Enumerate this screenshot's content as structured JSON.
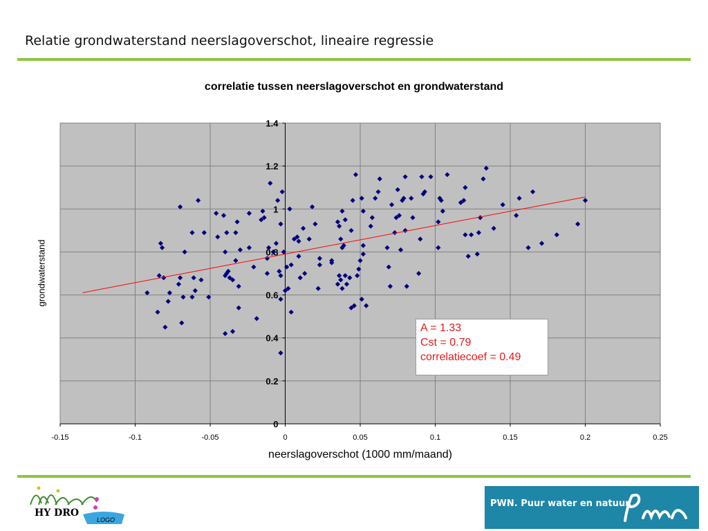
{
  "slide": {
    "title": "Relatie grondwaterstand neerslagoverschot,   lineaire regressie"
  },
  "colors": {
    "accent_rule": "#8cc63e",
    "plot_background": "#c0c0c0",
    "marker": "#000080",
    "regression_line": "#ff0000",
    "stats_text": "#e31b1b",
    "brand_blue": "#1e86a7"
  },
  "stats": {
    "line1": "A = 1.33",
    "line2": "Cst = 0.79",
    "line3": "correlatiecoef = 0.49"
  },
  "logos": {
    "left_text": "HY DRO",
    "left_sub": "LOGO",
    "right_tagline": "PWN. Puur water en natuur."
  },
  "chart_data": {
    "type": "scatter",
    "title": "correlatie tussen neerslagoverschot  en grondwaterstand",
    "xlabel": "neerslagoverschot (1000 mm/maand)",
    "ylabel": "grondwaterstand",
    "xlim": [
      -0.15,
      0.25
    ],
    "ylim": [
      0,
      1.4
    ],
    "xticks": [
      "-0.15",
      "-0.1",
      "-0.05",
      "0",
      "0.05",
      "0.1",
      "0.15",
      "0.2",
      "0.25"
    ],
    "yticks": [
      "0",
      "0.2",
      "0.4",
      "0.6",
      "0.8",
      "1",
      "1.2",
      "1.4"
    ],
    "grid": true,
    "marker": "diamond",
    "regression": {
      "slope": 1.33,
      "intercept": 0.79,
      "x_start": -0.135,
      "x_end": 0.2
    },
    "points": [
      [
        -0.092,
        0.61
      ],
      [
        -0.085,
        0.52
      ],
      [
        -0.084,
        0.69
      ],
      [
        -0.083,
        0.84
      ],
      [
        -0.082,
        0.82
      ],
      [
        -0.081,
        0.68
      ],
      [
        -0.08,
        0.45
      ],
      [
        -0.078,
        0.57
      ],
      [
        -0.077,
        0.61
      ],
      [
        -0.071,
        0.65
      ],
      [
        -0.07,
        0.68
      ],
      [
        -0.07,
        1.01
      ],
      [
        -0.069,
        0.47
      ],
      [
        -0.068,
        0.59
      ],
      [
        -0.067,
        0.8
      ],
      [
        -0.062,
        0.89
      ],
      [
        -0.062,
        0.59
      ],
      [
        -0.061,
        0.68
      ],
      [
        -0.06,
        0.62
      ],
      [
        -0.058,
        1.04
      ],
      [
        -0.056,
        0.67
      ],
      [
        -0.054,
        0.89
      ],
      [
        -0.051,
        0.59
      ],
      [
        -0.046,
        0.98
      ],
      [
        -0.045,
        0.87
      ],
      [
        -0.041,
        0.97
      ],
      [
        -0.04,
        0.8
      ],
      [
        -0.04,
        0.69
      ],
      [
        -0.04,
        0.42
      ],
      [
        -0.039,
        0.7
      ],
      [
        -0.039,
        0.89
      ],
      [
        -0.038,
        0.71
      ],
      [
        -0.037,
        0.68
      ],
      [
        -0.035,
        0.67
      ],
      [
        -0.035,
        0.43
      ],
      [
        -0.033,
        0.89
      ],
      [
        -0.033,
        0.76
      ],
      [
        -0.032,
        0.94
      ],
      [
        -0.031,
        0.64
      ],
      [
        -0.031,
        0.54
      ],
      [
        -0.03,
        0.81
      ],
      [
        -0.024,
        0.98
      ],
      [
        -0.024,
        0.82
      ],
      [
        -0.021,
        0.73
      ],
      [
        -0.019,
        0.49
      ],
      [
        -0.016,
        0.95
      ],
      [
        -0.015,
        0.99
      ],
      [
        -0.014,
        0.96
      ],
      [
        -0.012,
        0.7
      ],
      [
        -0.012,
        0.77
      ],
      [
        -0.011,
        0.82
      ],
      [
        -0.01,
        1.12
      ],
      [
        -0.008,
        0.8
      ],
      [
        -0.006,
        0.84
      ],
      [
        -0.005,
        1.04
      ],
      [
        -0.004,
        0.71
      ],
      [
        -0.003,
        0.69
      ],
      [
        -0.003,
        0.33
      ],
      [
        -0.003,
        0.58
      ],
      [
        -0.003,
        0.93
      ],
      [
        -0.002,
        1.08
      ],
      [
        -0.001,
        0.8
      ],
      [
        0.0,
        0.62
      ],
      [
        0.001,
        0.73
      ],
      [
        0.002,
        0.63
      ],
      [
        0.003,
        1.0
      ],
      [
        0.004,
        0.74
      ],
      [
        0.004,
        0.52
      ],
      [
        0.006,
        0.86
      ],
      [
        0.008,
        0.87
      ],
      [
        0.009,
        0.85
      ],
      [
        0.009,
        0.78
      ],
      [
        0.01,
        0.68
      ],
      [
        0.012,
        0.91
      ],
      [
        0.013,
        0.7
      ],
      [
        0.016,
        0.86
      ],
      [
        0.018,
        1.01
      ],
      [
        0.02,
        0.93
      ],
      [
        0.022,
        0.63
      ],
      [
        0.023,
        0.74
      ],
      [
        0.023,
        0.77
      ],
      [
        0.031,
        0.76
      ],
      [
        0.031,
        0.75
      ],
      [
        0.035,
        0.94
      ],
      [
        0.035,
        0.65
      ],
      [
        0.036,
        0.69
      ],
      [
        0.036,
        0.92
      ],
      [
        0.037,
        0.86
      ],
      [
        0.037,
        0.67
      ],
      [
        0.038,
        0.82
      ],
      [
        0.038,
        0.99
      ],
      [
        0.038,
        0.63
      ],
      [
        0.039,
        0.83
      ],
      [
        0.04,
        0.95
      ],
      [
        0.04,
        0.69
      ],
      [
        0.041,
        0.65
      ],
      [
        0.043,
        0.68
      ],
      [
        0.044,
        0.54
      ],
      [
        0.044,
        0.9
      ],
      [
        0.045,
        1.04
      ],
      [
        0.046,
        0.55
      ],
      [
        0.047,
        1.16
      ],
      [
        0.048,
        0.69
      ],
      [
        0.049,
        0.72
      ],
      [
        0.05,
        0.76
      ],
      [
        0.051,
        0.58
      ],
      [
        0.051,
        1.05
      ],
      [
        0.052,
        0.79
      ],
      [
        0.052,
        0.99
      ],
      [
        0.052,
        0.83
      ],
      [
        0.054,
        0.55
      ],
      [
        0.057,
        0.92
      ],
      [
        0.058,
        0.96
      ],
      [
        0.06,
        1.05
      ],
      [
        0.062,
        1.08
      ],
      [
        0.063,
        1.14
      ],
      [
        0.068,
        0.82
      ],
      [
        0.069,
        0.73
      ],
      [
        0.07,
        0.64
      ],
      [
        0.071,
        1.02
      ],
      [
        0.073,
        0.89
      ],
      [
        0.074,
        0.96
      ],
      [
        0.075,
        1.09
      ],
      [
        0.076,
        0.97
      ],
      [
        0.077,
        0.81
      ],
      [
        0.078,
        1.04
      ],
      [
        0.079,
        1.05
      ],
      [
        0.08,
        0.9
      ],
      [
        0.08,
        1.15
      ],
      [
        0.081,
        0.64
      ],
      [
        0.084,
        1.05
      ],
      [
        0.085,
        0.96
      ],
      [
        0.089,
        0.7
      ],
      [
        0.09,
        0.86
      ],
      [
        0.091,
        1.15
      ],
      [
        0.092,
        1.07
      ],
      [
        0.093,
        1.08
      ],
      [
        0.097,
        1.15
      ],
      [
        0.102,
        0.82
      ],
      [
        0.102,
        0.94
      ],
      [
        0.103,
        1.05
      ],
      [
        0.104,
        1.04
      ],
      [
        0.105,
        0.99
      ],
      [
        0.108,
        1.16
      ],
      [
        0.117,
        1.03
      ],
      [
        0.119,
        1.04
      ],
      [
        0.12,
        0.88
      ],
      [
        0.12,
        1.1
      ],
      [
        0.122,
        0.78
      ],
      [
        0.124,
        0.88
      ],
      [
        0.128,
        0.79
      ],
      [
        0.129,
        0.89
      ],
      [
        0.13,
        0.96
      ],
      [
        0.132,
        1.14
      ],
      [
        0.134,
        1.19
      ],
      [
        0.139,
        0.91
      ],
      [
        0.145,
        1.02
      ],
      [
        0.154,
        0.97
      ],
      [
        0.156,
        1.05
      ],
      [
        0.162,
        0.82
      ],
      [
        0.165,
        1.08
      ],
      [
        0.171,
        0.84
      ],
      [
        0.181,
        0.88
      ],
      [
        0.195,
        0.93
      ],
      [
        0.2,
        1.04
      ]
    ]
  }
}
